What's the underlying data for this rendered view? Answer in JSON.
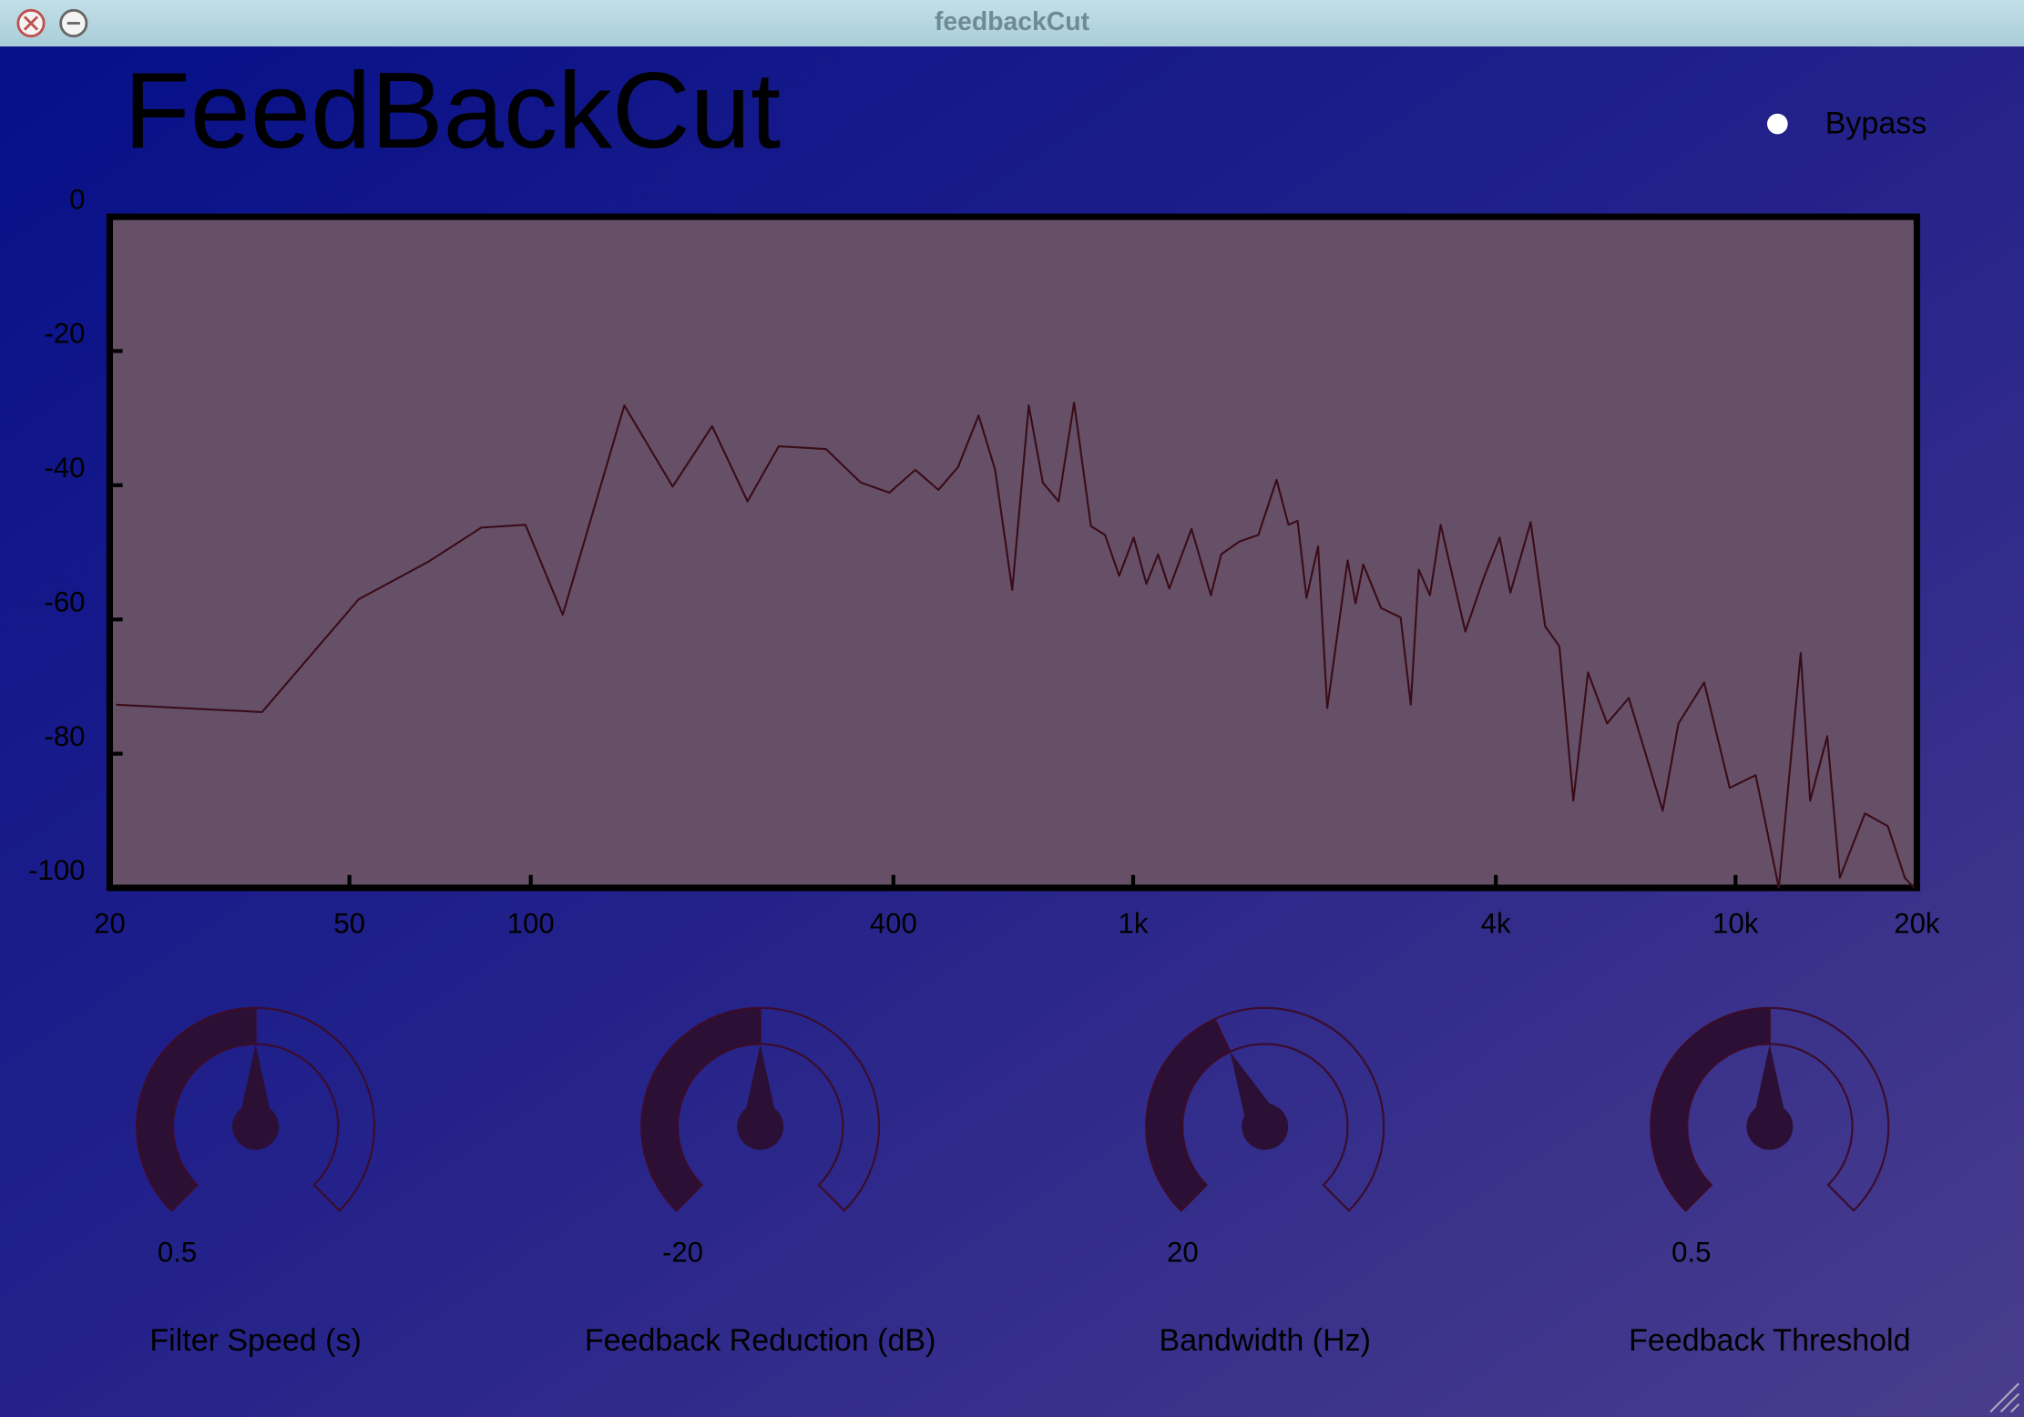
{
  "window_title": "feedbackCut",
  "app_title": "FeedBackCut",
  "bypass": {
    "label": "Bypass"
  },
  "chart_data": {
    "type": "line",
    "xscale": "log",
    "color": "#3a0c18",
    "x": [
      20.5,
      35.8,
      51.8,
      67.6,
      82.8,
      98,
      113,
      143,
      172,
      200,
      229,
      258,
      309,
      353,
      394,
      435,
      475,
      512,
      554,
      590,
      630,
      671,
      708,
      752,
      798,
      851,
      898,
      948,
      1002,
      1052,
      1100,
      1148,
      1250,
      1346,
      1400,
      1500,
      1614,
      1730,
      1811,
      1875,
      1940,
      2028,
      2100,
      2270,
      2340,
      2410,
      2580,
      2780,
      2890,
      2980,
      3110,
      3240,
      3560,
      3830,
      4060,
      4230,
      4570,
      4830,
      5100,
      5380,
      5690,
      6120,
      6650,
      7570,
      8040,
      8870,
      9780,
      10800,
      11800,
      12830,
      13300,
      14200,
      14900,
      16400,
      17900,
      19100,
      19800
    ],
    "values": [
      -72.7,
      -73.8,
      -57,
      -51.4,
      -46.3,
      -45.9,
      -59.3,
      -28.1,
      -40.2,
      -31.2,
      -42.4,
      -34.2,
      -34.6,
      -39.6,
      -41.1,
      -37.7,
      -40.7,
      -37.3,
      -29.6,
      -37.7,
      -55.6,
      -28.1,
      -39.6,
      -42.4,
      -27.7,
      -46.1,
      -47.4,
      -53.5,
      -47.8,
      -54.7,
      -50.3,
      -55.4,
      -46.5,
      -56.4,
      -50.3,
      -48.4,
      -47.4,
      -39.2,
      -45.9,
      -45.3,
      -56.8,
      -49.1,
      -73.2,
      -51.2,
      -57.6,
      -51.8,
      -58.3,
      -59.7,
      -72.7,
      -52.6,
      -56.4,
      -45.9,
      -61.8,
      -53.5,
      -47.8,
      -56,
      -45.5,
      -61,
      -64,
      -87,
      -67.9,
      -75.5,
      -71.7,
      -88.5,
      -75.5,
      -69.4,
      -85.1,
      -83.2,
      -100,
      -65,
      -87,
      -77.4,
      -98.5,
      -88.9,
      -90.8,
      -98.5,
      -100
    ],
    "xlim": [
      20,
      20000
    ],
    "ylim": [
      -100,
      0
    ],
    "xticks": [
      20,
      50,
      100,
      400,
      {
        "value": 1000,
        "label": "1k"
      },
      {
        "value": 4000,
        "label": "4k"
      },
      {
        "value": 10000,
        "label": "10k"
      },
      {
        "value": 20000,
        "label": "20k"
      }
    ],
    "yticks": [
      0,
      -20,
      -40,
      -60,
      -80,
      -100
    ]
  },
  "knobs": [
    {
      "value": 0.5,
      "label": "Filter Speed (s)"
    },
    {
      "value": -20,
      "label": "Feedback Reduction (dB)"
    },
    {
      "value": 20,
      "label": "Bandwidth (Hz)"
    },
    {
      "value": 0.5,
      "label": "Feedback Threshold"
    }
  ]
}
